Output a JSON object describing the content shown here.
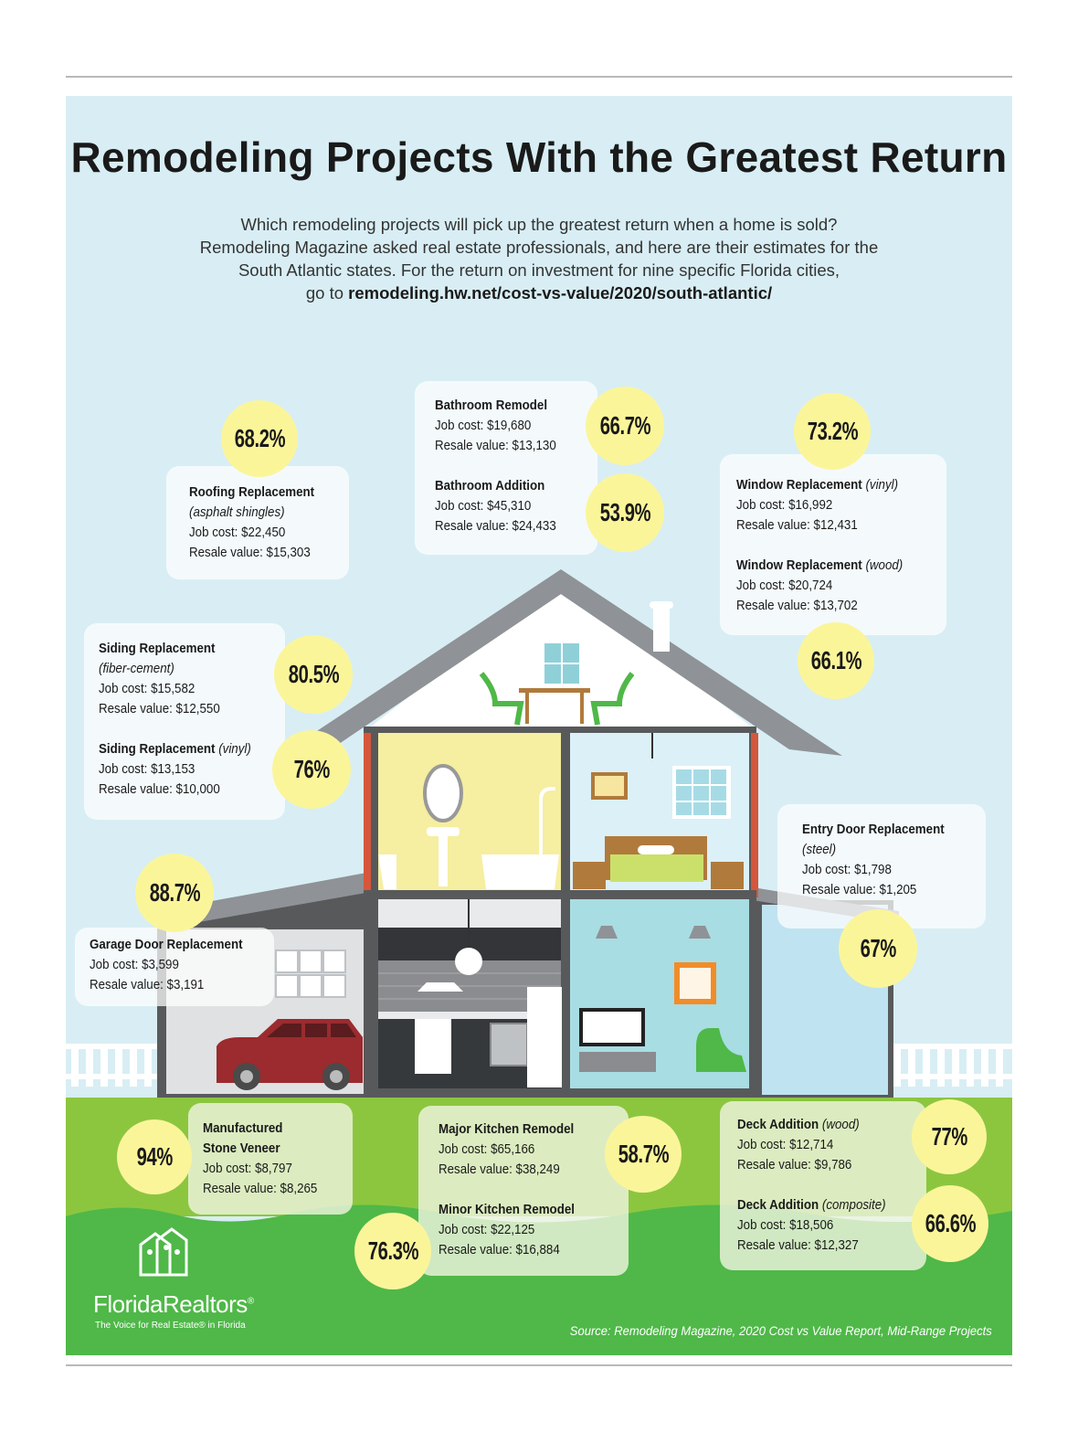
{
  "title": "Remodeling Projects With the Greatest Return",
  "intro": {
    "line1": "Which remodeling projects will pick up the greatest return when a home is sold?",
    "line2": "Remodeling Magazine asked real estate professionals, and here are their estimates for the",
    "line3": "South Atlantic states. For the return on investment for nine specific Florida cities,",
    "line4_prefix": "go to ",
    "link": "remodeling.hw.net/cost-vs-value/2020/south-atlantic/"
  },
  "projects": {
    "roofing": {
      "name": "Roofing Replacement",
      "qualifier": "(asphalt shingles)",
      "cost": "Job cost: $22,450",
      "resale": "Resale value: $15,303",
      "pct": "68.2%"
    },
    "bath_remodel": {
      "name": "Bathroom Remodel",
      "cost": "Job cost: $19,680",
      "resale": "Resale value: $13,130",
      "pct": "66.7%"
    },
    "bath_addition": {
      "name": "Bathroom Addition",
      "cost": "Job cost: $45,310",
      "resale": "Resale value: $24,433",
      "pct": "53.9%"
    },
    "window_vinyl": {
      "name": "Window Replacement",
      "qualifier": "(vinyl)",
      "cost": "Job cost: $16,992",
      "resale": "Resale value: $12,431",
      "pct": "73.2%"
    },
    "window_wood": {
      "name": "Window Replacement",
      "qualifier": "(wood)",
      "cost": "Job cost: $20,724",
      "resale": "Resale value: $13,702",
      "pct": "66.1%"
    },
    "siding_fiber": {
      "name": "Siding Replacement",
      "qualifier": "(fiber-cement)",
      "cost": "Job cost: $15,582",
      "resale": "Resale value: $12,550",
      "pct": "80.5%"
    },
    "siding_vinyl": {
      "name": "Siding Replacement",
      "qualifier": "(vinyl)",
      "cost": "Job cost: $13,153",
      "resale": "Resale value: $10,000",
      "pct": "76%"
    },
    "entry_door": {
      "name": "Entry Door Replacement",
      "qualifier": "(steel)",
      "cost": "Job cost: $1,798",
      "resale": "Resale value: $1,205",
      "pct": "67%"
    },
    "garage_door": {
      "name": "Garage Door Replacement",
      "cost": "Job cost: $3,599",
      "resale": "Resale value: $3,191",
      "pct": "88.7%"
    },
    "stone_veneer": {
      "name1": "Manufactured",
      "name2": "Stone Veneer",
      "cost": "Job cost: $8,797",
      "resale": "Resale value: $8,265",
      "pct": "94%"
    },
    "kitchen_major": {
      "name": "Major Kitchen Remodel",
      "cost": "Job cost: $65,166",
      "resale": "Resale value: $38,249",
      "pct": "58.7%"
    },
    "kitchen_minor": {
      "name": "Minor Kitchen Remodel",
      "cost": "Job cost: $22,125",
      "resale": "Resale value: $16,884",
      "pct": "76.3%"
    },
    "deck_wood": {
      "name": "Deck Addition",
      "qualifier": "(wood)",
      "cost": "Job cost: $12,714",
      "resale": "Resale value: $9,786",
      "pct": "77%"
    },
    "deck_composite": {
      "name": "Deck Addition",
      "qualifier": "(composite)",
      "cost": "Job cost: $18,506",
      "resale": "Resale value: $12,327",
      "pct": "66.6%"
    }
  },
  "logo": {
    "brand_a": "Florida",
    "brand_b": "Realtors",
    "reg": "®",
    "tagline": "The Voice for Real Estate® in Florida"
  },
  "source": "Source: Remodeling Magazine, 2020 Cost vs Value Report, Mid-Range Projects",
  "colors": {
    "sky": "#d8eef4",
    "grass_light": "#8cc63f",
    "grass_dark": "#4fb848",
    "badge": "#fbf59a",
    "roof": "#8f9296",
    "wall": "#58595b",
    "car": "#9b2b2e"
  }
}
